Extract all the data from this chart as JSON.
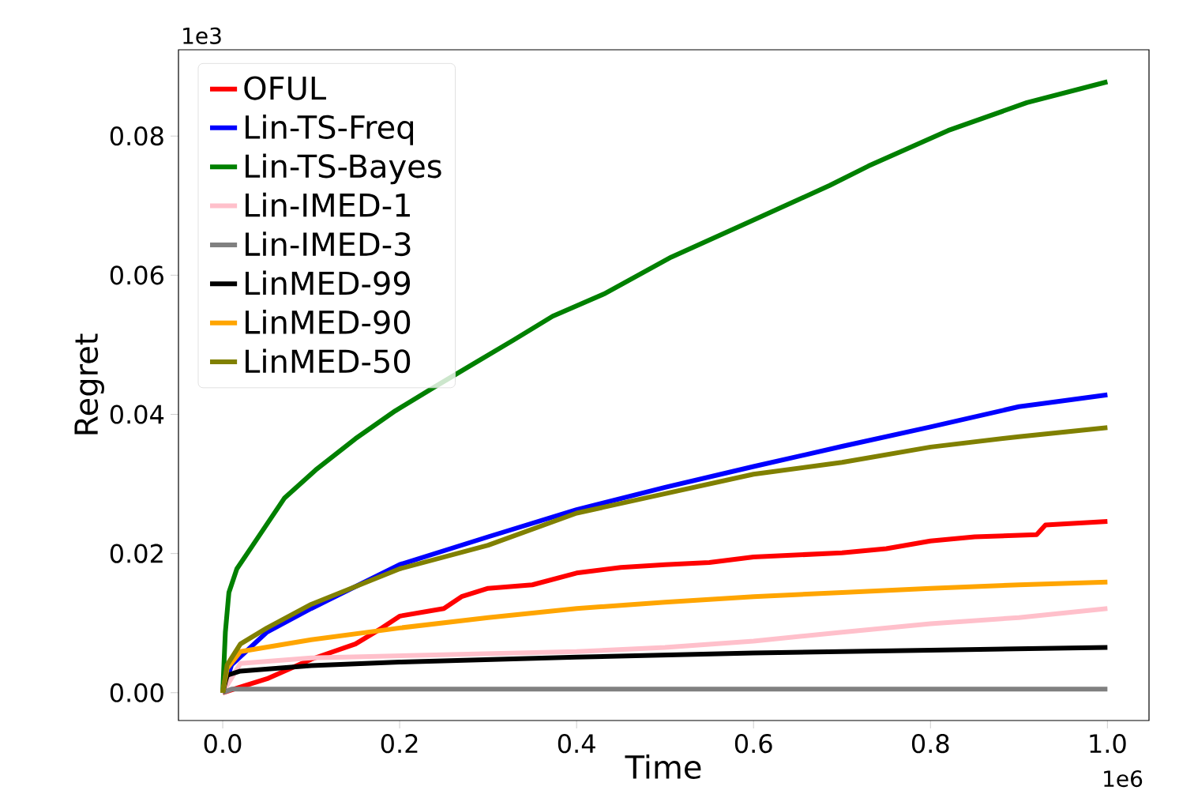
{
  "chart_data": {
    "type": "line",
    "xlabel": "Time",
    "ylabel": "Regret",
    "legend": "top left",
    "marker": "none",
    "line_style": "solid",
    "xlim": [
      -0.05,
      1.047
    ],
    "ylim": [
      -0.004,
      0.0924
    ],
    "xticks": [
      {
        "value": 0,
        "label": "0.0"
      },
      0.2,
      0.4,
      0.6,
      0.8,
      {
        "value": 1,
        "label": "1.0"
      }
    ],
    "yticks": [
      {
        "value": 0,
        "label": "0.00"
      },
      {
        "value": 0.02,
        "label": "0.02"
      },
      {
        "value": 0.04,
        "label": "0.04"
      },
      {
        "value": 0.06,
        "label": "0.06"
      },
      {
        "value": 0.08,
        "label": "0.08"
      }
    ],
    "annotations": [
      "1e3",
      "1e6"
    ],
    "series": [
      {
        "name": "OFUL",
        "color": "#ff0000",
        "x": [
          0,
          0.02,
          0.05,
          0.1,
          0.15,
          0.18,
          0.2,
          0.25,
          0.27,
          0.3,
          0.35,
          0.4,
          0.45,
          0.5,
          0.55,
          0.6,
          0.7,
          0.75,
          0.8,
          0.85,
          0.92,
          0.93,
          1.0
        ],
        "values": [
          0,
          0.0008,
          0.002,
          0.0048,
          0.007,
          0.0093,
          0.011,
          0.0121,
          0.0138,
          0.015,
          0.0155,
          0.0172,
          0.018,
          0.0184,
          0.0187,
          0.0195,
          0.0201,
          0.0207,
          0.0218,
          0.0224,
          0.0227,
          0.0241,
          0.0246
        ]
      },
      {
        "name": "Lin-TS-Freq",
        "color": "#0000ff",
        "x": [
          0,
          0.01,
          0.05,
          0.1,
          0.2,
          0.3,
          0.4,
          0.5,
          0.6,
          0.7,
          0.8,
          0.9,
          1.0
        ],
        "values": [
          0,
          0.004,
          0.0087,
          0.0121,
          0.0184,
          0.0224,
          0.0263,
          0.0295,
          0.0325,
          0.0354,
          0.0382,
          0.0411,
          0.0428
        ]
      },
      {
        "name": "Lin-TS-Bayes",
        "color": "#008000",
        "x": [
          0,
          0.003,
          0.007,
          0.016,
          0.034,
          0.052,
          0.07,
          0.105,
          0.15,
          0.195,
          0.239,
          0.284,
          0.329,
          0.373,
          0.431,
          0.507,
          0.596,
          0.686,
          0.73,
          0.82,
          0.909,
          1.0
        ],
        "values": [
          0,
          0.0087,
          0.0144,
          0.0178,
          0.0212,
          0.0246,
          0.028,
          0.032,
          0.0365,
          0.0405,
          0.0439,
          0.0473,
          0.0507,
          0.0541,
          0.0573,
          0.0626,
          0.0677,
          0.0729,
          0.0757,
          0.0808,
          0.0848,
          0.0878
        ]
      },
      {
        "name": "Lin-IMED-1",
        "color": "#ffc0cb",
        "x": [
          0,
          0.02,
          0.1,
          0.2,
          0.3,
          0.4,
          0.5,
          0.6,
          0.7,
          0.8,
          0.9,
          1.0
        ],
        "values": [
          0,
          0.0042,
          0.005,
          0.0053,
          0.0056,
          0.0059,
          0.0065,
          0.0074,
          0.0087,
          0.0099,
          0.0108,
          0.0121
        ]
      },
      {
        "name": "Lin-IMED-3",
        "color": "#808080",
        "x": [
          0,
          0.01,
          1.0
        ],
        "values": [
          0,
          0.0005,
          0.0005
        ]
      },
      {
        "name": "LinMED-99",
        "color": "#000000",
        "x": [
          0,
          0.005,
          0.02,
          0.1,
          0.2,
          0.4,
          0.6,
          0.8,
          1.0
        ],
        "values": [
          0,
          0.0025,
          0.0031,
          0.0039,
          0.0044,
          0.0051,
          0.0057,
          0.0061,
          0.0065
        ]
      },
      {
        "name": "LinMED-90",
        "color": "#ffa500",
        "x": [
          0,
          0.005,
          0.02,
          0.1,
          0.2,
          0.3,
          0.4,
          0.5,
          0.6,
          0.7,
          0.8,
          0.9,
          1.0
        ],
        "values": [
          0,
          0.0035,
          0.0059,
          0.0076,
          0.0093,
          0.0108,
          0.0121,
          0.013,
          0.0138,
          0.0144,
          0.015,
          0.0155,
          0.0159
        ]
      },
      {
        "name": "LinMED-50",
        "color": "#808000",
        "x": [
          0,
          0.005,
          0.02,
          0.05,
          0.1,
          0.2,
          0.3,
          0.4,
          0.5,
          0.6,
          0.7,
          0.8,
          0.9,
          1.0
        ],
        "values": [
          0,
          0.004,
          0.007,
          0.0093,
          0.0127,
          0.0178,
          0.0212,
          0.0258,
          0.0286,
          0.0314,
          0.0331,
          0.0353,
          0.0368,
          0.0381
        ]
      }
    ]
  }
}
